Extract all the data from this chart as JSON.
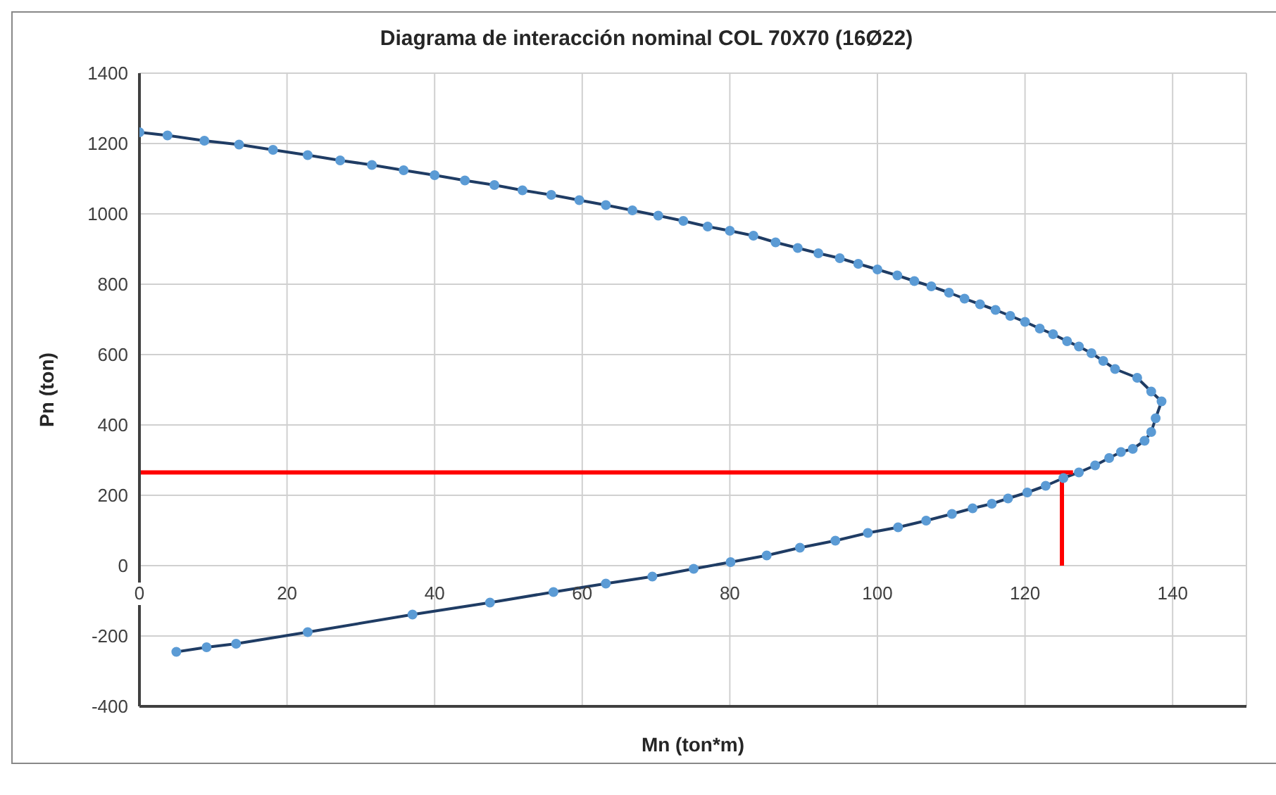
{
  "chart_data": {
    "type": "line",
    "title": "Diagrama de interacción nominal COL 70X70 (16Ø22)",
    "xlabel": "Mn (ton*m)",
    "ylabel": "Pn (ton)",
    "xlim": [
      0,
      150
    ],
    "xticks": [
      0,
      20,
      40,
      60,
      80,
      100,
      120,
      140
    ],
    "ylim": [
      -400,
      1400
    ],
    "yticks": [
      -400,
      -200,
      0,
      200,
      400,
      600,
      800,
      1000,
      1200,
      1400
    ],
    "grid": true,
    "marker": "circle",
    "series": [
      {
        "color": "#5b9bd5",
        "x": [
          0,
          3.8,
          8.8,
          13.5,
          18.1,
          22.8,
          27.2,
          31.5,
          35.8,
          40,
          44.1,
          48.1,
          51.9,
          55.8,
          59.6,
          63.2,
          66.8,
          70.3,
          73.7,
          77,
          80,
          83.2,
          86.2,
          89.2,
          92,
          94.9,
          97.4,
          100,
          102.7,
          105,
          107.3,
          109.7,
          111.8,
          113.9,
          116,
          118,
          120,
          122,
          123.8,
          125.7,
          127.3,
          129,
          130.6,
          132.2,
          135.2,
          137.1,
          138.5,
          137.7,
          137.1,
          136.2,
          134.6,
          133,
          131.4,
          129.5,
          127.3,
          125.2,
          122.8,
          120.3,
          117.7,
          115.5,
          112.9,
          110.1,
          106.6,
          102.8,
          98.7,
          94.3,
          89.5,
          85,
          80.1,
          75.1,
          69.5,
          63.2,
          56.1,
          47.5,
          37,
          22.8,
          13.1,
          9.1,
          5
        ],
        "values": [
          1232,
          1223,
          1208,
          1197,
          1182,
          1167,
          1152,
          1139,
          1124,
          1110,
          1095,
          1082,
          1067,
          1054,
          1039,
          1025,
          1010,
          995,
          980,
          964,
          952,
          938,
          919,
          903,
          888,
          874,
          858,
          842,
          825,
          809,
          794,
          776,
          759,
          743,
          727,
          710,
          693,
          674,
          658,
          638,
          623,
          604,
          582,
          559,
          534,
          495,
          467,
          419,
          380,
          355,
          332,
          323,
          306,
          285,
          265,
          249,
          227,
          208,
          191,
          176,
          163,
          147,
          128,
          109,
          93,
          71,
          51,
          29,
          10,
          -9,
          -31,
          -51,
          -75,
          -105,
          -139,
          -189,
          -222,
          -232,
          -245
        ]
      },
      {
        "color": "#ff0000",
        "marker": "none",
        "x": [
          0,
          126.5
        ],
        "values": [
          265,
          265
        ]
      },
      {
        "color": "#ff0000",
        "marker": "none",
        "x": [
          125,
          125
        ],
        "values": [
          265,
          0
        ]
      }
    ]
  }
}
